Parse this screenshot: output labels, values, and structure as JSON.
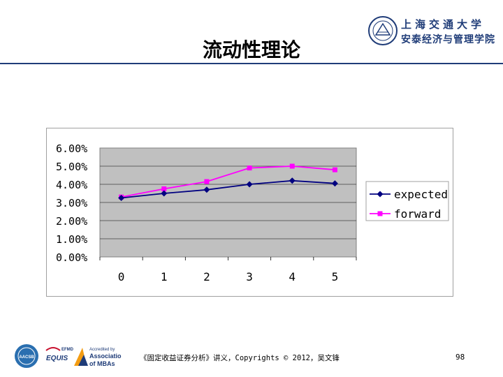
{
  "slide": {
    "title": "流动性理论",
    "footer": "《固定收益证券分析》讲义，Copyrights © 2012，吴文锋",
    "page_number": "98"
  },
  "logo": {
    "line1": "上海交通大学",
    "line2": "安泰经济与管理学院"
  },
  "accreditation": {
    "aacsb": "AACSB",
    "equis_top": "EFMD",
    "equis": "EQUIS",
    "amba_line1": "Accredited by",
    "amba_line2": "Association",
    "amba_line3": "of MBAs"
  },
  "colors": {
    "accent": "#1f3c78",
    "plot_bg": "#c0c0c0",
    "expected": "#000080",
    "forward": "#ff00ff"
  },
  "chart_data": {
    "type": "line",
    "x": [
      0,
      1,
      2,
      3,
      4,
      5
    ],
    "categories": [
      "0",
      "1",
      "2",
      "3",
      "4",
      "5"
    ],
    "y_ticks": [
      "6.00%",
      "5.00%",
      "4.00%",
      "3.00%",
      "2.00%",
      "1.00%",
      "0.00%"
    ],
    "ylim": [
      0,
      6
    ],
    "grid": true,
    "legend_position": "right",
    "series": [
      {
        "name": "expected",
        "values": [
          3.25,
          3.5,
          3.7,
          4.0,
          4.2,
          4.05
        ]
      },
      {
        "name": "forward",
        "values": [
          3.3,
          3.75,
          4.15,
          4.9,
          5.0,
          4.8
        ]
      }
    ]
  }
}
